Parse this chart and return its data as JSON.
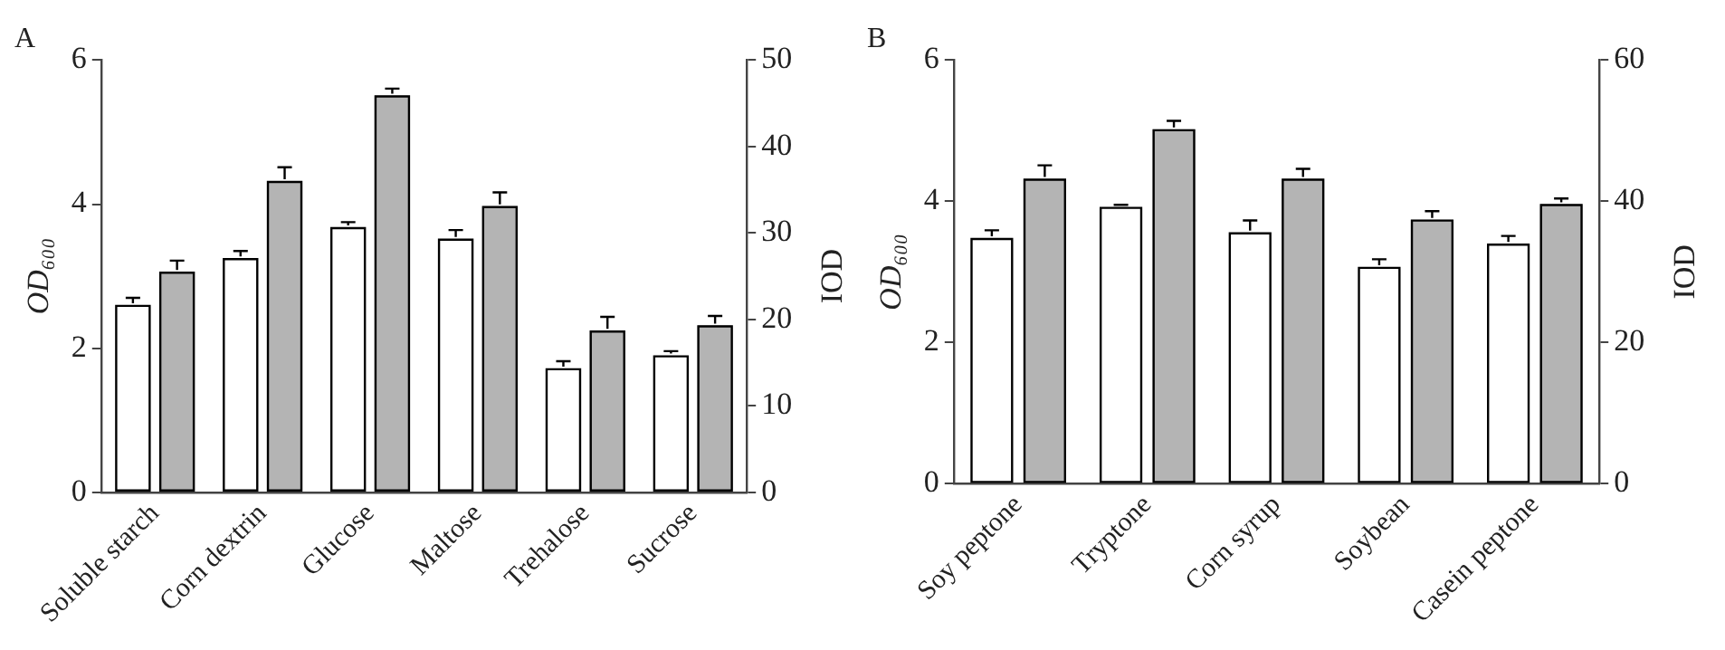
{
  "chart_data": [
    {
      "type": "bar",
      "title": "A",
      "categories": [
        "Soluble starch",
        "Corn dextrin",
        "Glucose",
        "Maltose",
        "Trehalose",
        "Sucrose"
      ],
      "ylabel": "OD₆₀₀",
      "y2label": "IOD",
      "ylim": [
        0,
        6
      ],
      "yticks": [
        0,
        2,
        4,
        6
      ],
      "y2lim": [
        0,
        50
      ],
      "y2ticks": [
        0,
        10,
        20,
        30,
        40,
        50
      ],
      "grid": false,
      "legend": false,
      "series": [
        {
          "color": "#ffffff",
          "values": [
            2.6,
            3.25,
            3.68,
            3.52,
            1.72,
            1.9
          ],
          "errors": [
            [
              2.6,
              2.7
            ],
            [
              3.25,
              3.35
            ],
            [
              3.68,
              3.75
            ],
            [
              3.52,
              3.64
            ],
            [
              1.72,
              1.82
            ],
            [
              1.9,
              1.96
            ]
          ]
        },
        {
          "color": "#b4b4b4",
          "axis": "y2",
          "values": [
            25.5,
            36,
            45.9,
            33.1,
            18.7,
            19.3
          ],
          "errors": [
            [
              25.5,
              26.8
            ],
            [
              36,
              37.6
            ],
            [
              45.9,
              46.7
            ],
            [
              33.1,
              34.7
            ],
            [
              18.7,
              20.3
            ],
            [
              19.3,
              20.4
            ]
          ]
        }
      ]
    },
    {
      "type": "bar",
      "title": "B",
      "categories": [
        "Soy peptone",
        "Tryptone",
        "Corn syrup",
        "Soybean",
        "Casein peptone"
      ],
      "ylabel": "OD₆₀₀",
      "y2label": "IOD",
      "ylim": [
        0,
        6
      ],
      "yticks": [
        0,
        2,
        4,
        6
      ],
      "y2lim": [
        0,
        60
      ],
      "y2ticks": [
        0,
        20,
        40,
        60
      ],
      "grid": false,
      "legend": false,
      "series": [
        {
          "color": "#ffffff",
          "values": [
            3.48,
            3.92,
            3.56,
            3.07,
            3.4
          ],
          "errors": [
            [
              3.48,
              3.59
            ],
            [
              3.92,
              3.95
            ],
            [
              3.56,
              3.73
            ],
            [
              3.07,
              3.18
            ],
            [
              3.4,
              3.51
            ]
          ]
        },
        {
          "color": "#b4b4b4",
          "axis": "y2",
          "values": [
            43.2,
            50.2,
            43.2,
            37.4,
            39.6
          ],
          "errors": [
            [
              43.2,
              45.1
            ],
            [
              50.2,
              51.4
            ],
            [
              43.2,
              44.6
            ],
            [
              37.4,
              38.6
            ],
            [
              39.6,
              40.4
            ]
          ]
        }
      ]
    }
  ]
}
